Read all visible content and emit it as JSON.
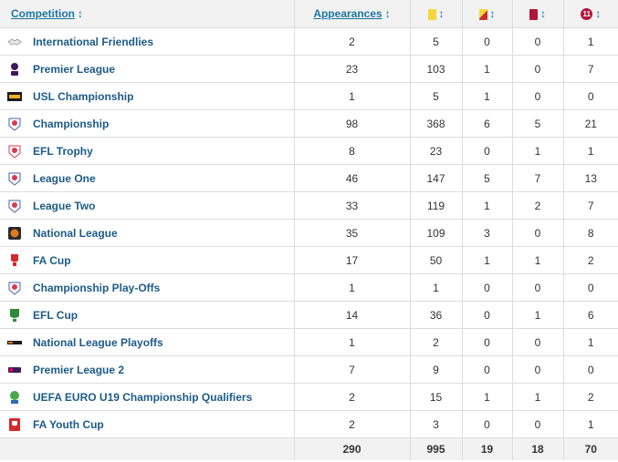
{
  "headers": {
    "competition": "Competition",
    "appearances": "Appearances",
    "sort_glyph": "↕",
    "penalty_badge": "11"
  },
  "icons": {
    "goals": "yellow-card-icon",
    "yellow_red": "yellow-red-card-icon",
    "red": "red-card-icon",
    "penalty": "penalty-icon"
  },
  "colors": {
    "link": "#1d75a3",
    "yellow_card": "#f4d73b",
    "red_card": "#b0173a"
  },
  "rows": [
    {
      "name": "International Friendlies",
      "apps": "2",
      "c1": "5",
      "c2": "0",
      "c3": "0",
      "c4": "1",
      "logo": "friendly-handshake-icon"
    },
    {
      "name": "Premier League",
      "apps": "23",
      "c1": "103",
      "c2": "1",
      "c3": "0",
      "c4": "7",
      "logo": "premier-league-logo"
    },
    {
      "name": "USL Championship",
      "apps": "1",
      "c1": "5",
      "c2": "1",
      "c3": "0",
      "c4": "0",
      "logo": "usl-logo"
    },
    {
      "name": "Championship",
      "apps": "98",
      "c1": "368",
      "c2": "6",
      "c3": "5",
      "c4": "21",
      "logo": "efl-logo"
    },
    {
      "name": "EFL Trophy",
      "apps": "8",
      "c1": "23",
      "c2": "0",
      "c3": "1",
      "c4": "1",
      "logo": "efl-trophy-logo"
    },
    {
      "name": "League One",
      "apps": "46",
      "c1": "147",
      "c2": "5",
      "c3": "7",
      "c4": "13",
      "logo": "efl-logo"
    },
    {
      "name": "League Two",
      "apps": "33",
      "c1": "119",
      "c2": "1",
      "c3": "2",
      "c4": "7",
      "logo": "efl-logo"
    },
    {
      "name": "National League",
      "apps": "35",
      "c1": "109",
      "c2": "3",
      "c3": "0",
      "c4": "8",
      "logo": "national-league-logo"
    },
    {
      "name": "FA Cup",
      "apps": "17",
      "c1": "50",
      "c2": "1",
      "c3": "1",
      "c4": "2",
      "logo": "fa-cup-logo"
    },
    {
      "name": "Championship Play-Offs",
      "apps": "1",
      "c1": "1",
      "c2": "0",
      "c3": "0",
      "c4": "0",
      "logo": "efl-logo"
    },
    {
      "name": "EFL Cup",
      "apps": "14",
      "c1": "36",
      "c2": "0",
      "c3": "1",
      "c4": "6",
      "logo": "efl-cup-logo"
    },
    {
      "name": "National League Playoffs",
      "apps": "1",
      "c1": "2",
      "c2": "0",
      "c3": "0",
      "c4": "1",
      "logo": "national-league-playoffs-logo"
    },
    {
      "name": "Premier League 2",
      "apps": "7",
      "c1": "9",
      "c2": "0",
      "c3": "0",
      "c4": "0",
      "logo": "premier-league-2-logo"
    },
    {
      "name": "UEFA EURO U19 Championship Qualifiers",
      "apps": "2",
      "c1": "15",
      "c2": "1",
      "c3": "1",
      "c4": "2",
      "logo": "uefa-u19-logo"
    },
    {
      "name": "FA Youth Cup",
      "apps": "2",
      "c1": "3",
      "c2": "0",
      "c3": "0",
      "c4": "1",
      "logo": "fa-youth-cup-logo"
    }
  ],
  "totals": {
    "apps": "290",
    "c1": "995",
    "c2": "19",
    "c3": "18",
    "c4": "70"
  }
}
